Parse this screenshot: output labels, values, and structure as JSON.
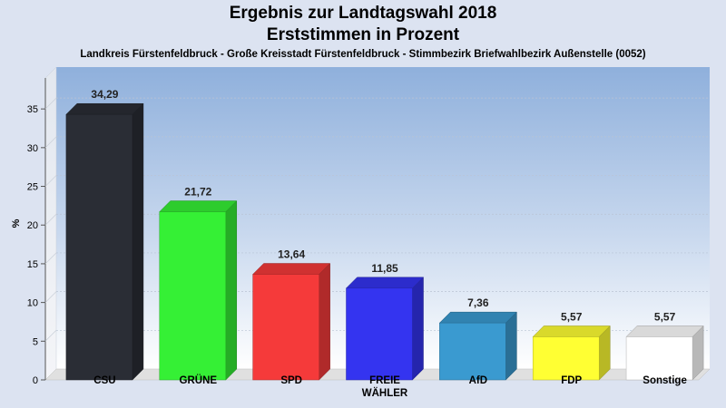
{
  "chart_data": {
    "type": "bar",
    "title": "Ergebnis zur Landtagswahl 2018",
    "subtitle": "Erststimmen in Prozent",
    "caption": "Landkreis Fürstenfeldbruck - Große Kreisstadt Fürstenfeldbruck - Stimmbezirk Briefwahlbezirk Außenstelle (0052)",
    "ylabel": "%",
    "xlabel": "",
    "ylim": [
      0,
      39
    ],
    "yticks": [
      0,
      5,
      10,
      15,
      20,
      25,
      30,
      35
    ],
    "grid": true,
    "categories": [
      "CSU",
      "GRÜNE",
      "SPD",
      "FREIE WÄHLER",
      "AfD",
      "FDP",
      "Sonstige"
    ],
    "category_lines": [
      [
        "CSU"
      ],
      [
        "GRÜNE"
      ],
      [
        "SPD"
      ],
      [
        "FREIE",
        "WÄHLER"
      ],
      [
        "AfD"
      ],
      [
        "FDP"
      ],
      [
        "Sonstige"
      ]
    ],
    "values": [
      34.29,
      21.72,
      13.64,
      11.85,
      7.36,
      5.57,
      5.57
    ],
    "value_labels": [
      "34,29",
      "21,72",
      "13,64",
      "11,85",
      "7,36",
      "5,57",
      "5,57"
    ],
    "colors": [
      "#2a2d35",
      "#35f035",
      "#f53a3a",
      "#3434f0",
      "#3a9ad0",
      "#ffff33",
      "#ffffff"
    ]
  }
}
